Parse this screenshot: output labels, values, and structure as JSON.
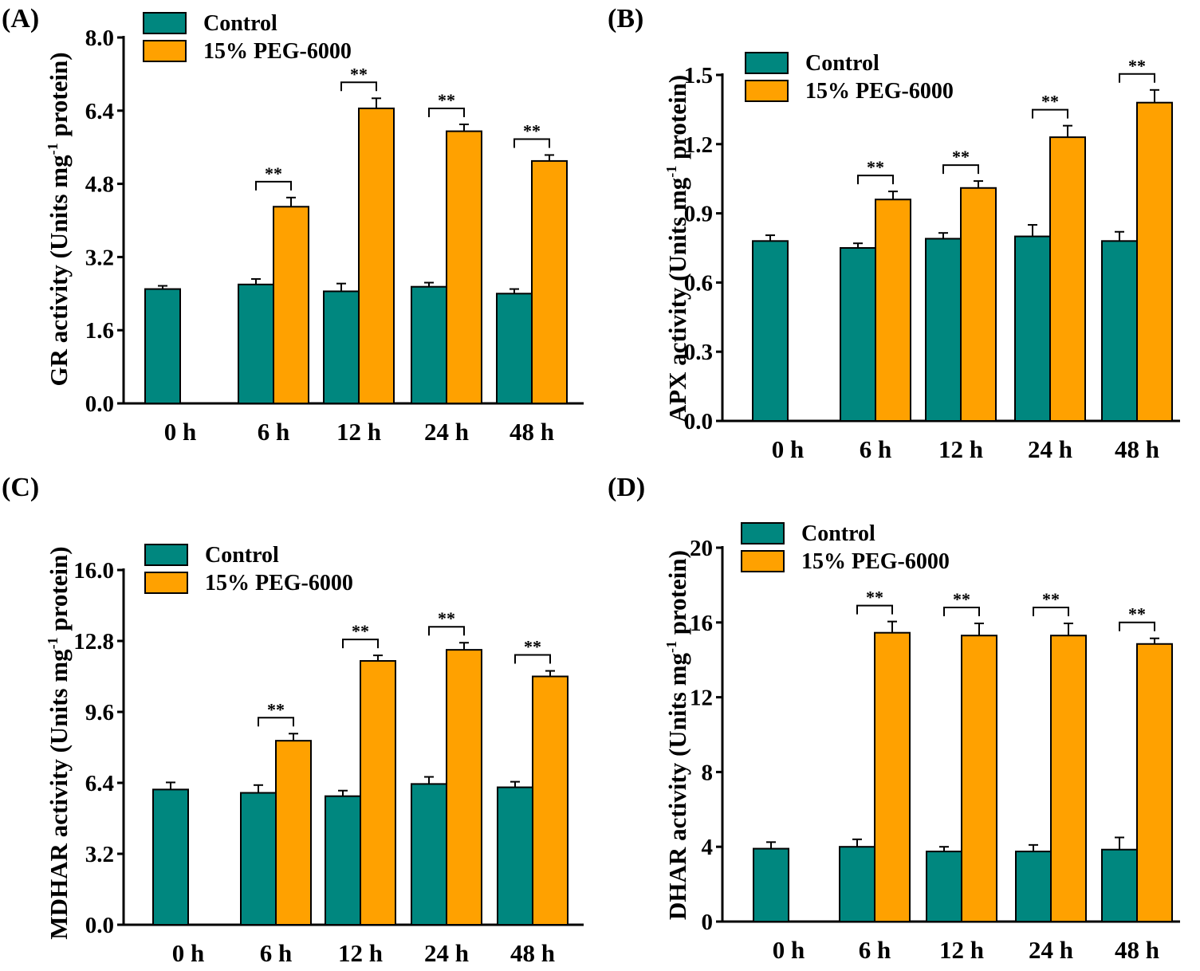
{
  "legend": {
    "control": "Control",
    "treatment": "15% PEG-6000"
  },
  "colors": {
    "control": "#00877F",
    "treatment": "#FFA100",
    "axis": "#000000"
  },
  "significance": "**",
  "chart_data": [
    {
      "panel_label": "(A)",
      "type": "bar",
      "ylabel": "GR activity (Units mg",
      "ylabel_sup": "-1",
      "ylabel_end": " protein)",
      "ylim": [
        0,
        8
      ],
      "yticks": [
        0,
        1.6,
        3.2,
        4.8,
        6.4,
        8.0
      ],
      "ytick_labels": [
        "0.0",
        "1.6",
        "3.2",
        "4.8",
        "6.4",
        "8.0"
      ],
      "categories": [
        "0 h",
        "6 h",
        "12 h",
        "24 h",
        "48 h"
      ],
      "series": [
        {
          "name": "Control",
          "values": [
            2.5,
            2.6,
            2.45,
            2.55,
            2.4
          ],
          "errors": [
            0.07,
            0.12,
            0.17,
            0.09,
            0.1
          ]
        },
        {
          "name": "15% PEG-6000",
          "values": [
            null,
            4.3,
            6.45,
            5.95,
            5.3
          ],
          "errors": [
            null,
            0.2,
            0.22,
            0.15,
            0.13
          ]
        }
      ],
      "significant": [
        false,
        true,
        true,
        true,
        true
      ]
    },
    {
      "panel_label": "(B)",
      "type": "bar",
      "ylabel": "APX activity (Units mg",
      "ylabel_sup": "-1",
      "ylabel_end": " protein)",
      "ylim": [
        0,
        1.5
      ],
      "yticks": [
        0,
        0.3,
        0.6,
        0.9,
        1.2,
        1.5
      ],
      "ytick_labels": [
        "0.0",
        "0.3",
        "0.6",
        "0.9",
        "1.2",
        "1.5"
      ],
      "categories": [
        "0 h",
        "6 h",
        "12 h",
        "24 h",
        "48 h"
      ],
      "series": [
        {
          "name": "Control",
          "values": [
            0.78,
            0.75,
            0.79,
            0.8,
            0.78
          ],
          "errors": [
            0.025,
            0.02,
            0.025,
            0.05,
            0.04
          ]
        },
        {
          "name": "15% PEG-6000",
          "values": [
            null,
            0.96,
            1.01,
            1.23,
            1.38
          ],
          "errors": [
            null,
            0.035,
            0.03,
            0.05,
            0.055
          ]
        }
      ],
      "significant": [
        false,
        true,
        true,
        true,
        true
      ]
    },
    {
      "panel_label": "(C)",
      "type": "bar",
      "ylabel": "MDHAR activity (Units mg",
      "ylabel_sup": "-1",
      "ylabel_end": " protein)",
      "ylim": [
        0,
        16
      ],
      "yticks": [
        0,
        3.2,
        6.4,
        9.6,
        12.8,
        16.0
      ],
      "ytick_labels": [
        "0.0",
        "3.2",
        "6.4",
        "9.6",
        "12.8",
        "16.0"
      ],
      "categories": [
        "0 h",
        "6 h",
        "12 h",
        "24 h",
        "48 h"
      ],
      "series": [
        {
          "name": "Control",
          "values": [
            6.1,
            5.95,
            5.8,
            6.35,
            6.2
          ],
          "errors": [
            0.32,
            0.35,
            0.25,
            0.32,
            0.25
          ]
        },
        {
          "name": "15% PEG-6000",
          "values": [
            null,
            8.3,
            11.9,
            12.4,
            11.2
          ],
          "errors": [
            null,
            0.32,
            0.25,
            0.32,
            0.25
          ]
        }
      ],
      "significant": [
        false,
        true,
        true,
        true,
        true
      ]
    },
    {
      "panel_label": "(D)",
      "type": "bar",
      "ylabel": "DHAR activity (Units mg",
      "ylabel_sup": "-1",
      "ylabel_end": " protein)",
      "ylim": [
        0,
        20
      ],
      "yticks": [
        0,
        4,
        8,
        12,
        16,
        20
      ],
      "ytick_labels": [
        "0",
        "4",
        "8",
        "12",
        "16",
        "20"
      ],
      "categories": [
        "0 h",
        "6 h",
        "12 h",
        "24 h",
        "48 h"
      ],
      "series": [
        {
          "name": "Control",
          "values": [
            3.9,
            4.0,
            3.75,
            3.75,
            3.85
          ],
          "errors": [
            0.35,
            0.4,
            0.25,
            0.35,
            0.65
          ]
        },
        {
          "name": "15% PEG-6000",
          "values": [
            null,
            15.45,
            15.3,
            15.3,
            14.85
          ],
          "errors": [
            null,
            0.6,
            0.65,
            0.65,
            0.3
          ]
        }
      ],
      "significant": [
        false,
        true,
        true,
        true,
        true
      ]
    }
  ]
}
